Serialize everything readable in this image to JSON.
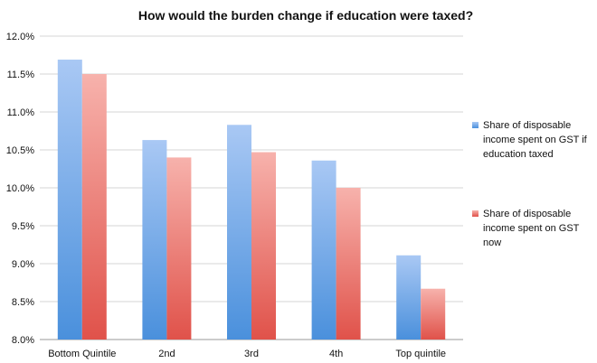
{
  "chart_data": {
    "type": "bar",
    "title": "How would the burden change if education were taxed?",
    "xlabel": "",
    "ylabel": "",
    "categories": [
      "Bottom Quintile",
      "2nd",
      "3rd",
      "4th",
      "Top quintile"
    ],
    "series": [
      {
        "name": "Share of disposable income spent on GST if education taxed",
        "legend_lines": [
          "Share of disposable",
          "income spent on GST if",
          "education taxed"
        ],
        "values": [
          11.69,
          10.63,
          10.83,
          10.36,
          9.11
        ],
        "color_top": "#a9c8f4",
        "color_bottom": "#4a90dc"
      },
      {
        "name": "Share of disposable income spent on GST now",
        "legend_lines": [
          "Share of disposable",
          "income spent on GST",
          "now"
        ],
        "values": [
          11.5,
          10.4,
          10.47,
          10.0,
          8.67
        ],
        "color_top": "#f7b2ac",
        "color_bottom": "#e0524a"
      }
    ],
    "ylim": [
      8.0,
      12.0
    ],
    "yticks": [
      8.0,
      8.5,
      9.0,
      9.5,
      10.0,
      10.5,
      11.0,
      11.5,
      12.0
    ],
    "ytick_labels": [
      "8.0%",
      "8.5%",
      "9.0%",
      "9.5%",
      "10.0%",
      "10.5%",
      "11.0%",
      "11.5%",
      "12.0%"
    ],
    "grid": true,
    "legend_position": "right"
  }
}
